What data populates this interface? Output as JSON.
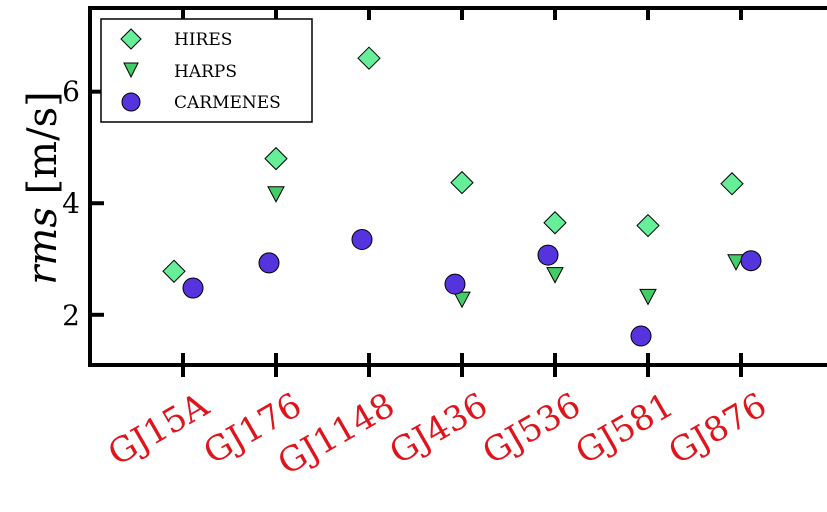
{
  "chart_data": {
    "type": "scatter",
    "categories": [
      "GJ15A",
      "GJ176",
      "GJ1148",
      "GJ436",
      "GJ536",
      "GJ581",
      "GJ876"
    ],
    "series": [
      {
        "name": "HIRES",
        "marker": "diamond",
        "color": "#66ee99",
        "values": [
          2.78,
          4.8,
          6.6,
          4.37,
          3.65,
          3.6,
          4.35
        ]
      },
      {
        "name": "HARPS",
        "marker": "triangle-down",
        "color": "#44cc66",
        "values": [
          null,
          4.17,
          null,
          2.28,
          2.72,
          2.33,
          2.95
        ]
      },
      {
        "name": "CARMENES",
        "marker": "circle",
        "color": "#5533dd",
        "values": [
          2.48,
          2.93,
          3.35,
          2.55,
          3.07,
          1.62,
          2.97
        ]
      }
    ],
    "ylabel_italic": "rms",
    "ylabel_unit": " [m/s]",
    "yticks": [
      "2",
      "4",
      "6"
    ],
    "ylim": [
      1.1,
      7.5
    ],
    "legend_position": "top-left",
    "category_label_color": "#e0141b"
  }
}
